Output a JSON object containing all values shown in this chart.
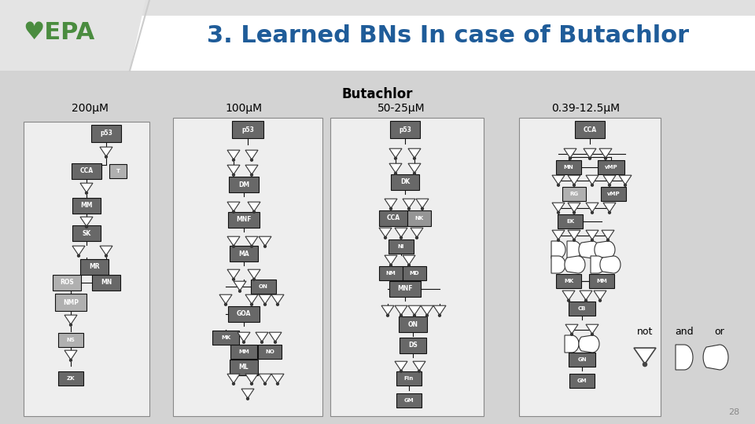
{
  "title": "3. Learned BNs In case of Butachlor",
  "title_color": "#1F5C99",
  "slide_bg": "#C8C8C8",
  "header_bg_left": "#E8E8E8",
  "header_bg_right": "#FFFFFF",
  "content_bg": "#D0D0D0",
  "slide_number": "28",
  "butachlor_label": "Butachlor",
  "concentrations": [
    "200μM",
    "100μM",
    "50-25μM",
    "0.39-12.5μM"
  ],
  "epa_color": "#4A8C3F",
  "legend_items": [
    "not",
    "and",
    "or"
  ],
  "node_dark": "#707070",
  "node_mid": "#999999",
  "node_light": "#B8B8B8",
  "gate_fill": "#FFFFFF",
  "gate_edge": "#333333",
  "line_color": "#000000",
  "box_bg": "#F0F0F0",
  "box_edge": "#888888"
}
